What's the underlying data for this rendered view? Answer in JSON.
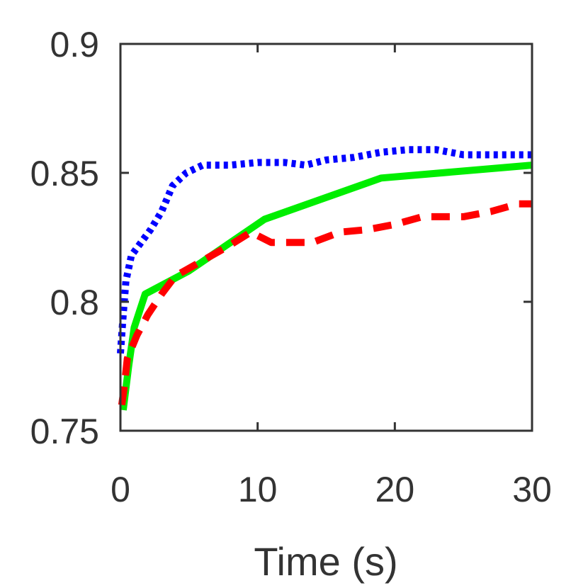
{
  "chart_data": {
    "type": "line",
    "title": "",
    "xlabel": "Time (s)",
    "ylabel": "",
    "xlim": [
      0,
      30
    ],
    "ylim": [
      0.75,
      0.9
    ],
    "x_ticks": [
      0,
      10,
      20,
      30
    ],
    "x_tick_labels": [
      "0",
      "10",
      "20",
      "30"
    ],
    "y_ticks": [
      0.75,
      0.8,
      0.85,
      0.9
    ],
    "y_tick_labels": [
      "0.75",
      "0.8",
      "0.85",
      "0.9"
    ],
    "grid": false,
    "series": [
      {
        "name": "dotted-blue",
        "color": "#0000ff",
        "style": "dotted",
        "points": [
          [
            0,
            0.78
          ],
          [
            0.2,
            0.795
          ],
          [
            0.4,
            0.808
          ],
          [
            0.8,
            0.818
          ],
          [
            1.5,
            0.823
          ],
          [
            2.2,
            0.828
          ],
          [
            3,
            0.835
          ],
          [
            3.8,
            0.845
          ],
          [
            4.8,
            0.85
          ],
          [
            6,
            0.853
          ],
          [
            8,
            0.853
          ],
          [
            10,
            0.854
          ],
          [
            12,
            0.854
          ],
          [
            13.5,
            0.853
          ],
          [
            15,
            0.855
          ],
          [
            17,
            0.856
          ],
          [
            19,
            0.858
          ],
          [
            21,
            0.859
          ],
          [
            23,
            0.859
          ],
          [
            25,
            0.857
          ],
          [
            28,
            0.857
          ],
          [
            30,
            0.857
          ]
        ]
      },
      {
        "name": "solid-green",
        "color": "#00ee00",
        "style": "solid",
        "points": [
          [
            0.2,
            0.758
          ],
          [
            0.6,
            0.775
          ],
          [
            1.0,
            0.79
          ],
          [
            1.8,
            0.803
          ],
          [
            5,
            0.812
          ],
          [
            10.5,
            0.832
          ],
          [
            19,
            0.848
          ],
          [
            30,
            0.853
          ]
        ]
      },
      {
        "name": "dashed-red",
        "color": "#ff0000",
        "style": "dashed",
        "points": [
          [
            0.1,
            0.76
          ],
          [
            0.3,
            0.768
          ],
          [
            0.5,
            0.778
          ],
          [
            1.2,
            0.787
          ],
          [
            2,
            0.795
          ],
          [
            3,
            0.803
          ],
          [
            4,
            0.81
          ],
          [
            6,
            0.816
          ],
          [
            8,
            0.822
          ],
          [
            9.5,
            0.827
          ],
          [
            11,
            0.823
          ],
          [
            14,
            0.823
          ],
          [
            16,
            0.827
          ],
          [
            18,
            0.828
          ],
          [
            20,
            0.83
          ],
          [
            22,
            0.833
          ],
          [
            25,
            0.833
          ],
          [
            27,
            0.835
          ],
          [
            29,
            0.838
          ],
          [
            30,
            0.838
          ]
        ]
      }
    ]
  }
}
